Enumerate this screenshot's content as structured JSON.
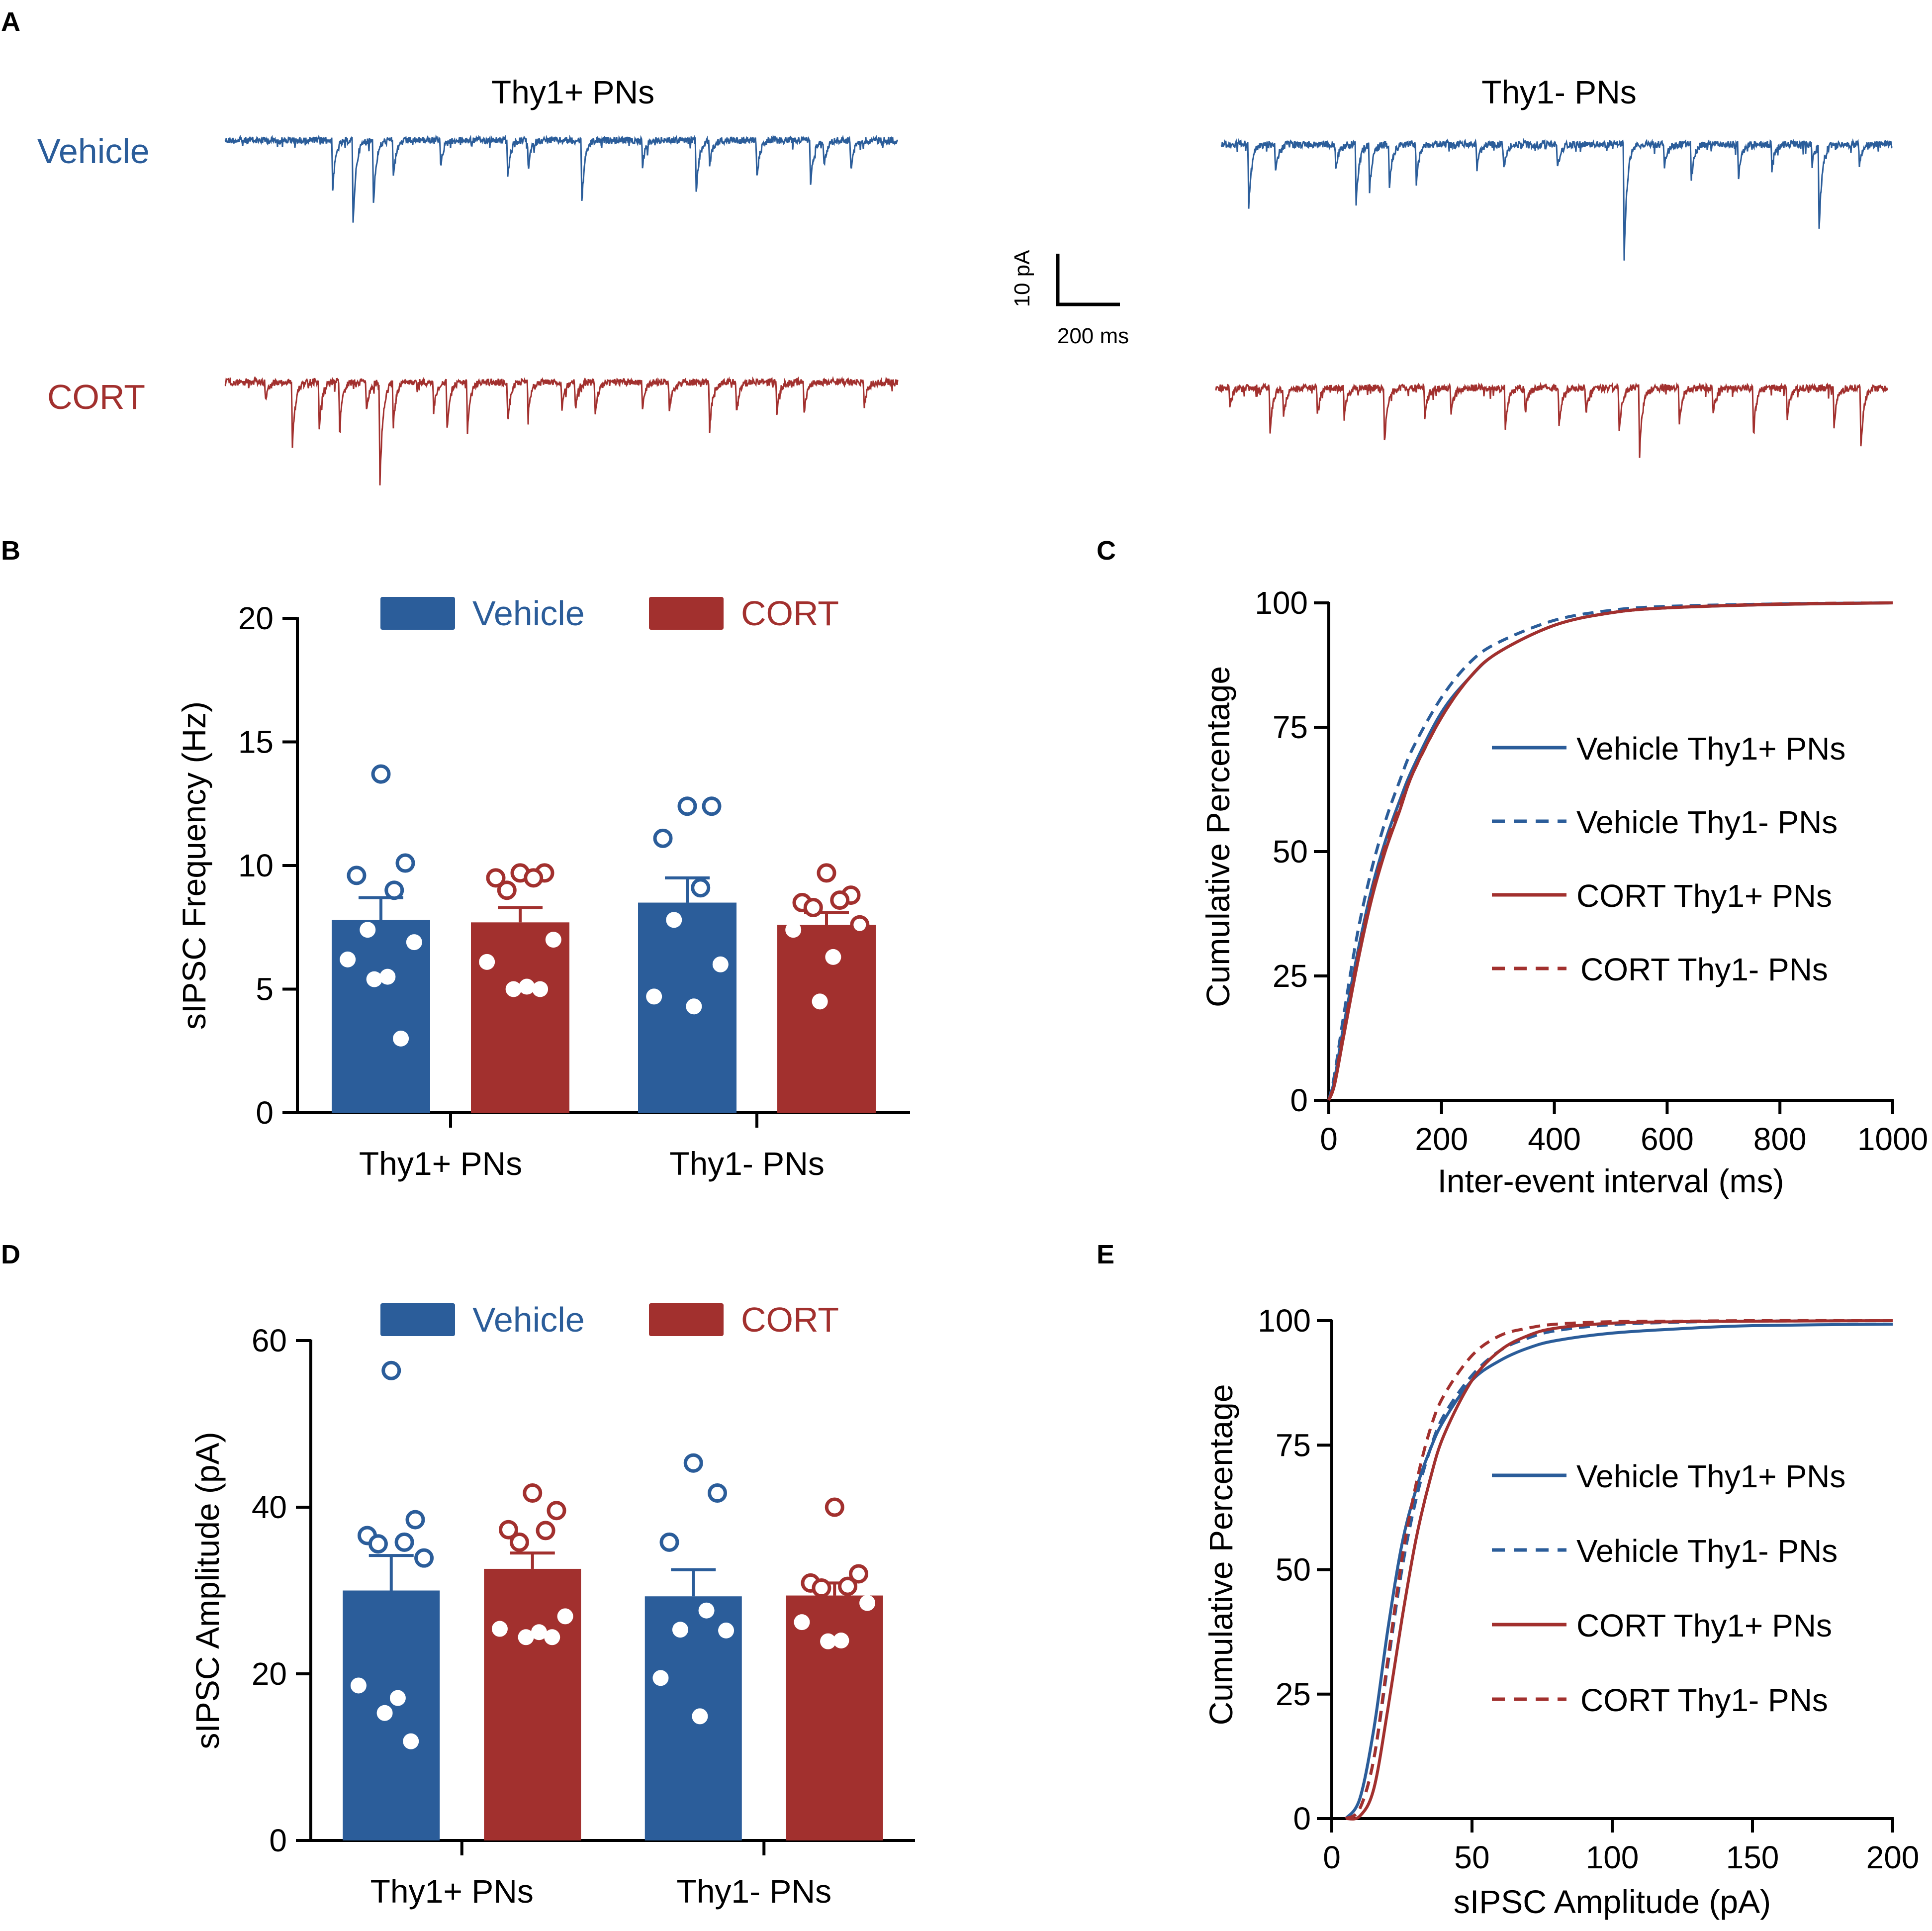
{
  "colors": {
    "vehicle": "#2B5D9A",
    "cort": "#A2302E",
    "axis": "#000000",
    "dot_fill": "#ffffff"
  },
  "panels": {
    "A": {
      "letter": "A",
      "title_left": "Thy1+ PNs",
      "title_right": "Thy1- PNs",
      "row_vehicle": "Vehicle",
      "row_cort": "CORT",
      "scale_y": "10 pA",
      "scale_x": "200 ms"
    },
    "B": {
      "letter": "B"
    },
    "C": {
      "letter": "C"
    },
    "D": {
      "letter": "D"
    },
    "E": {
      "letter": "E"
    }
  },
  "chart_data": [
    {
      "id": "B",
      "type": "bar",
      "title": "",
      "ylabel": "sIPSC Frequency (Hz)",
      "xlabel": "",
      "ylim": [
        0,
        20
      ],
      "yticks": [
        0,
        5,
        10,
        15,
        20
      ],
      "categories": [
        "Thy1+ PNs",
        "Thy1- PNs"
      ],
      "legend": [
        "Vehicle",
        "CORT"
      ],
      "legend_position": "top",
      "series": [
        {
          "name": "Vehicle",
          "values": [
            7.8,
            8.5
          ],
          "sem": [
            0.9,
            1.0
          ],
          "points": [
            [
              13.7,
              10.1,
              9.6,
              9.0,
              7.4,
              6.9,
              6.2,
              5.5,
              5.4,
              3.0
            ],
            [
              12.4,
              12.4,
              11.1,
              9.1,
              7.8,
              6.0,
              4.7,
              4.3
            ]
          ]
        },
        {
          "name": "CORT",
          "values": [
            7.7,
            7.6
          ],
          "sem": [
            0.6,
            0.5
          ],
          "points": [
            [
              9.7,
              9.7,
              9.5,
              9.5,
              9.0,
              7.0,
              6.1,
              5.1,
              5.0,
              5.0
            ],
            [
              9.7,
              8.8,
              8.5,
              8.6,
              8.3,
              7.6,
              7.4,
              6.3,
              4.5
            ]
          ]
        }
      ]
    },
    {
      "id": "C",
      "type": "line",
      "title": "",
      "xlabel": "Inter-event interval (ms)",
      "ylabel": "Cumulative Percentage",
      "xlim": [
        0,
        1000
      ],
      "ylim": [
        0,
        100
      ],
      "xticks": [
        0,
        200,
        400,
        600,
        800,
        1000
      ],
      "yticks": [
        0,
        25,
        50,
        75,
        100
      ],
      "legend_position": "center-right",
      "series": [
        {
          "name": "Vehicle Thy1+ PNs",
          "color": "vehicle",
          "dashed": false,
          "x": [
            0,
            10,
            25,
            50,
            75,
            100,
            125,
            150,
            200,
            250,
            300,
            400,
            500,
            600,
            800,
            1000
          ],
          "y": [
            0,
            4,
            14,
            29,
            42,
            52,
            60,
            67,
            78,
            85,
            90,
            95.5,
            98,
            99,
            99.7,
            100
          ]
        },
        {
          "name": "Vehicle Thy1- PNs",
          "color": "vehicle",
          "dashed": true,
          "x": [
            0,
            10,
            25,
            50,
            75,
            100,
            125,
            150,
            200,
            250,
            300,
            400,
            500,
            600,
            800,
            1000
          ],
          "y": [
            0,
            5,
            16,
            33,
            46,
            56,
            64,
            71,
            81,
            88,
            92,
            96.5,
            98.5,
            99.3,
            99.8,
            100
          ]
        },
        {
          "name": "CORT Thy1+ PNs",
          "color": "cort",
          "dashed": false,
          "x": [
            0,
            10,
            25,
            50,
            75,
            100,
            125,
            150,
            200,
            250,
            300,
            400,
            500,
            600,
            800,
            1000
          ],
          "y": [
            0,
            3,
            12,
            27,
            40,
            50,
            58,
            66,
            77,
            85,
            90,
            95.5,
            98,
            99,
            99.7,
            100
          ]
        },
        {
          "name": "CORT Thy1- PNs",
          "color": "cort",
          "dashed": true,
          "x": [
            0,
            10,
            25,
            50,
            75,
            100,
            125,
            150,
            200,
            250,
            300,
            400,
            500,
            600,
            800,
            1000
          ],
          "y": [
            0,
            3.5,
            13,
            28,
            41,
            51,
            59,
            66,
            77,
            85,
            90,
            95.5,
            98,
            99,
            99.8,
            100
          ]
        }
      ]
    },
    {
      "id": "D",
      "type": "bar",
      "title": "",
      "ylabel": "sIPSC Amplitude (pA)",
      "xlabel": "",
      "ylim": [
        0,
        60
      ],
      "yticks": [
        0,
        20,
        40,
        60
      ],
      "categories": [
        "Thy1+ PNs",
        "Thy1- PNs"
      ],
      "legend": [
        "Vehicle",
        "CORT"
      ],
      "legend_position": "top",
      "series": [
        {
          "name": "Vehicle",
          "values": [
            30,
            29.3
          ],
          "sem": [
            4.2,
            3.2
          ],
          "points": [
            [
              56.4,
              38.5,
              36.6,
              35.8,
              35.6,
              33.9,
              18.6,
              17.1,
              15.3,
              11.9
            ],
            [
              45.3,
              41.7,
              35.8,
              27.6,
              25.3,
              25.2,
              19.5,
              14.9
            ]
          ]
        },
        {
          "name": "CORT",
          "values": [
            32.6,
            29.4
          ],
          "sem": [
            1.9,
            1.5
          ],
          "points": [
            [
              41.7,
              39.6,
              37.3,
              37.2,
              35.8,
              26.9,
              25.4,
              25.0,
              24.4,
              24.4
            ],
            [
              40.0,
              32.0,
              30.9,
              30.5,
              30.3,
              28.5,
              26.2,
              24.0,
              23.9
            ]
          ]
        }
      ]
    },
    {
      "id": "E",
      "type": "line",
      "title": "",
      "xlabel": "sIPSC Amplitude (pA)",
      "ylabel": "Cumulative Percentage",
      "xlim": [
        0,
        200
      ],
      "ylim": [
        0,
        100
      ],
      "xticks": [
        0,
        50,
        100,
        150,
        200
      ],
      "yticks": [
        0,
        25,
        50,
        75,
        100
      ],
      "legend_position": "center-right",
      "series": [
        {
          "name": "Vehicle Thy1+ PNs",
          "color": "vehicle",
          "dashed": false,
          "x": [
            5,
            10,
            15,
            20,
            25,
            30,
            35,
            40,
            50,
            60,
            70,
            80,
            100,
            125,
            150,
            200
          ],
          "y": [
            0,
            4,
            18,
            38,
            55,
            66,
            74,
            80,
            88,
            92,
            94.5,
            96,
            97.5,
            98.4,
            99,
            99.3
          ]
        },
        {
          "name": "Vehicle Thy1- PNs",
          "color": "vehicle",
          "dashed": true,
          "x": [
            5,
            10,
            15,
            20,
            25,
            30,
            35,
            40,
            50,
            60,
            70,
            80,
            100,
            125,
            150,
            200
          ],
          "y": [
            0,
            2,
            12,
            31,
            50,
            64,
            74,
            81,
            89,
            94,
            96.5,
            98,
            99.2,
            99.7,
            99.9,
            100
          ]
        },
        {
          "name": "CORT Thy1+ PNs",
          "color": "cort",
          "dashed": false,
          "x": [
            5,
            10,
            15,
            20,
            25,
            30,
            35,
            40,
            50,
            60,
            70,
            80,
            100,
            125,
            150,
            200
          ],
          "y": [
            0,
            0.5,
            6,
            22,
            40,
            56,
            68,
            77,
            88,
            94,
            97,
            98.5,
            99.5,
            99.8,
            99.9,
            100
          ]
        },
        {
          "name": "CORT Thy1- PNs",
          "color": "cort",
          "dashed": true,
          "x": [
            5,
            10,
            15,
            20,
            25,
            30,
            35,
            40,
            50,
            60,
            70,
            80,
            100,
            125,
            150,
            200
          ],
          "y": [
            0,
            2,
            12,
            32,
            52,
            67,
            78,
            85,
            93,
            97,
            98.5,
            99.3,
            99.8,
            99.9,
            100,
            100
          ]
        }
      ]
    }
  ]
}
